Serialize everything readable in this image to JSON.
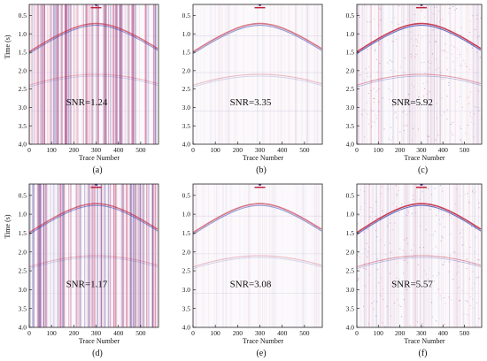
{
  "figure": {
    "panels": [
      {
        "label": "(a)",
        "snr": "SNR=1.24",
        "noise_level": "high",
        "ylabel": "Time (s)",
        "xlabel": "Trace Number"
      },
      {
        "label": "(b)",
        "snr": "SNR=3.35",
        "noise_level": "low",
        "ylabel": "",
        "xlabel": "Trace Number"
      },
      {
        "label": "(c)",
        "snr": "SNR=5.92",
        "noise_level": "medium",
        "ylabel": "",
        "xlabel": "Trace Number"
      },
      {
        "label": "(d)",
        "snr": "SNR=1.17",
        "noise_level": "high",
        "ylabel": "Time (s)",
        "xlabel": "Trace Number"
      },
      {
        "label": "(e)",
        "snr": "SNR=3.08",
        "noise_level": "low",
        "ylabel": "",
        "xlabel": "Trace Number"
      },
      {
        "label": "(f)",
        "snr": "SNR=5.57",
        "noise_level": "medium",
        "ylabel": "",
        "xlabel": "Trace Number"
      }
    ]
  },
  "chart_data": [
    {
      "type": "heatmap",
      "title": "(a)",
      "annotation": "SNR=1.24",
      "xlabel": "Trace Number",
      "ylabel": "Time (s)",
      "xlim": [
        0,
        580
      ],
      "ylim": [
        4.0,
        0.2
      ],
      "xticks": [
        0,
        100,
        200,
        300,
        400,
        500
      ],
      "yticks": [
        0.5,
        1.0,
        1.5,
        2.0,
        2.5,
        3.0,
        3.5,
        4.0
      ],
      "events": [
        {
          "apex_trace": 300,
          "apex_time": 0.72
        },
        {
          "apex_trace": 300,
          "apex_time": 2.1
        }
      ],
      "colors": [
        "#c0203a",
        "#2233aa"
      ]
    },
    {
      "type": "heatmap",
      "title": "(b)",
      "annotation": "SNR=3.35",
      "xlabel": "Trace Number",
      "ylabel": "",
      "xlim": [
        0,
        580
      ],
      "ylim": [
        4.0,
        0.2
      ],
      "xticks": [
        0,
        100,
        200,
        300,
        400,
        500
      ],
      "yticks": [
        0.5,
        1.0,
        1.5,
        2.0,
        2.5,
        3.0,
        3.5,
        4.0
      ],
      "events": [
        {
          "apex_trace": 300,
          "apex_time": 0.72
        },
        {
          "apex_trace": 300,
          "apex_time": 2.1
        }
      ],
      "colors": [
        "#c0203a",
        "#2233aa"
      ]
    },
    {
      "type": "heatmap",
      "title": "(c)",
      "annotation": "SNR=5.92",
      "xlabel": "Trace Number",
      "ylabel": "",
      "xlim": [
        0,
        580
      ],
      "ylim": [
        4.0,
        0.2
      ],
      "xticks": [
        0,
        100,
        200,
        300,
        400,
        500
      ],
      "yticks": [
        0.5,
        1.0,
        1.5,
        2.0,
        2.5,
        3.0,
        3.5,
        4.0
      ],
      "events": [
        {
          "apex_trace": 300,
          "apex_time": 0.72
        },
        {
          "apex_trace": 300,
          "apex_time": 2.1
        }
      ],
      "colors": [
        "#c0203a",
        "#2233aa"
      ]
    },
    {
      "type": "heatmap",
      "title": "(d)",
      "annotation": "SNR=1.17",
      "xlabel": "Trace Number",
      "ylabel": "Time (s)",
      "xlim": [
        0,
        580
      ],
      "ylim": [
        4.0,
        0.2
      ],
      "xticks": [
        0,
        100,
        200,
        300,
        400,
        500
      ],
      "yticks": [
        0.5,
        1.0,
        1.5,
        2.0,
        2.5,
        3.0,
        3.5,
        4.0
      ],
      "events": [
        {
          "apex_trace": 300,
          "apex_time": 0.72
        },
        {
          "apex_trace": 300,
          "apex_time": 2.1
        }
      ],
      "colors": [
        "#c0203a",
        "#2233aa"
      ]
    },
    {
      "type": "heatmap",
      "title": "(e)",
      "annotation": "SNR=3.08",
      "xlabel": "Trace Number",
      "ylabel": "",
      "xlim": [
        0,
        580
      ],
      "ylim": [
        4.0,
        0.2
      ],
      "xticks": [
        0,
        100,
        200,
        300,
        400,
        500
      ],
      "yticks": [
        0.5,
        1.0,
        1.5,
        2.0,
        2.5,
        3.0,
        3.5,
        4.0
      ],
      "events": [
        {
          "apex_trace": 300,
          "apex_time": 0.72
        },
        {
          "apex_trace": 300,
          "apex_time": 2.1
        }
      ],
      "colors": [
        "#c0203a",
        "#2233aa"
      ]
    },
    {
      "type": "heatmap",
      "title": "(f)",
      "annotation": "SNR=5.57",
      "xlabel": "Trace Number",
      "ylabel": "",
      "xlim": [
        0,
        580
      ],
      "ylim": [
        4.0,
        0.2
      ],
      "xticks": [
        0,
        100,
        200,
        300,
        400,
        500
      ],
      "yticks": [
        0.5,
        1.0,
        1.5,
        2.0,
        2.5,
        3.0,
        3.5,
        4.0
      ],
      "events": [
        {
          "apex_trace": 300,
          "apex_time": 0.72
        },
        {
          "apex_trace": 300,
          "apex_time": 2.1
        }
      ],
      "colors": [
        "#c0203a",
        "#2233aa"
      ]
    }
  ]
}
